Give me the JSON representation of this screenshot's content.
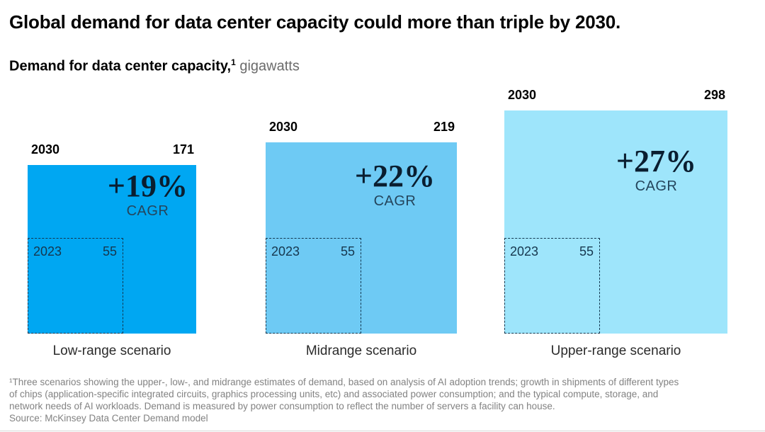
{
  "title": "Global demand for data center capacity could more than triple by 2030.",
  "subtitle": {
    "bold": "Demand for data center capacity,",
    "footnote_marker": "1",
    "unit": " gigawatts"
  },
  "chart_data": {
    "type": "area",
    "variant": "nested-proportional-squares",
    "title": "Global demand for data center capacity could more than triple by 2030.",
    "subtitle": "Demand for data center capacity, gigawatts",
    "unit": "gigawatts",
    "projection_year": "2030",
    "base_year": "2023",
    "base_value": 55,
    "categories": [
      "Low-range scenario",
      "Midrange scenario",
      "Upper-range scenario"
    ],
    "scenarios": [
      {
        "label": "Low-range scenario",
        "year": "2030",
        "value": "171",
        "cagr": "+19%",
        "cagr_label": "CAGR",
        "base_year": "2023",
        "base_value": "55",
        "color": "#00A7F2"
      },
      {
        "label": "Midrange scenario",
        "year": "2030",
        "value": "219",
        "cagr": "+22%",
        "cagr_label": "CAGR",
        "base_year": "2023",
        "base_value": "55",
        "color": "#6ECAF4"
      },
      {
        "label": "Upper-range scenario",
        "year": "2030",
        "value": "298",
        "cagr": "+27%",
        "cagr_label": "CAGR",
        "base_year": "2023",
        "base_value": "55",
        "color": "#9EE5FB"
      }
    ],
    "layout": {
      "grid": false,
      "legend": false,
      "area_scale": "side length proportional to sqrt(value)"
    }
  },
  "footnote": {
    "line1": "¹Three scenarios showing the upper-, low-, and midrange estimates of demand, based on analysis of AI adoption trends; growth in shipments of different types",
    "line2": "of chips (application-specific integrated circuits, graphics processing units, etc) and associated power consumption; and the typical compute, storage, and",
    "line3": "network needs of AI workloads. Demand is measured by power consumption to reflect the number of servers a facility can house.",
    "line4": "Source: McKinsey Data Center Demand model"
  },
  "colors": {
    "square_low": "#00A7F2",
    "square_mid": "#6ECAF4",
    "square_upper": "#9EE5FB",
    "dashed_border": "#12374F",
    "inner_text": "#16374E",
    "cagr_pct_text": "#0A1E30",
    "cagr_label_text": "#24455C",
    "title_text": "#000000",
    "unit_text": "#6B6B6B",
    "footnote_text": "#828282"
  }
}
